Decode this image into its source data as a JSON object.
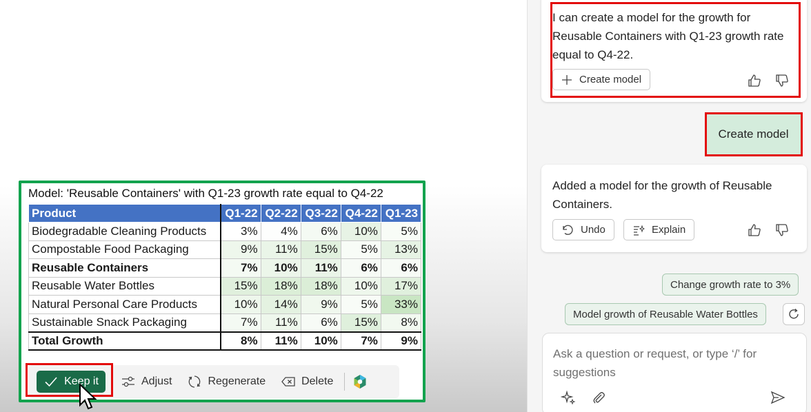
{
  "model": {
    "title": "Model: 'Reusable Containers' with Q1-23 growth rate equal to Q4-22",
    "columns": [
      "Product",
      "Q1-22",
      "Q2-22",
      "Q3-22",
      "Q4-22",
      "Q1-23"
    ],
    "rows": [
      {
        "product": "Biodegradable Cleaning Products",
        "values": [
          "3%",
          "4%",
          "6%",
          "10%",
          "5%"
        ]
      },
      {
        "product": "Compostable Food Packaging",
        "values": [
          "9%",
          "11%",
          "15%",
          "5%",
          "13%"
        ]
      },
      {
        "product": "Reusable Containers",
        "values": [
          "7%",
          "10%",
          "11%",
          "6%",
          "6%"
        ]
      },
      {
        "product": "Reusable Water Bottles",
        "values": [
          "15%",
          "18%",
          "18%",
          "10%",
          "17%"
        ]
      },
      {
        "product": "Natural Personal Care Products",
        "values": [
          "10%",
          "14%",
          "9%",
          "5%",
          "33%"
        ]
      },
      {
        "product": "Sustainable Snack Packaging",
        "values": [
          "7%",
          "11%",
          "6%",
          "15%",
          "8%"
        ]
      }
    ],
    "total": {
      "product": "Total Growth",
      "values": [
        "8%",
        "11%",
        "10%",
        "7%",
        "9%"
      ]
    },
    "cell_colors": [
      [
        "#ffffff",
        "#fdfefd",
        "#f4faf3",
        "#e7f3e5",
        "#f8fcf7"
      ],
      [
        "#eef7ec",
        "#eaf5e8",
        "#e0f0dd",
        "#f8fcf7",
        "#e6f3e4"
      ],
      [
        "#f4faf3",
        "#ecf6ea",
        "#eaf5e8",
        "#f7fbf6",
        "#f7fbf6"
      ],
      [
        "#e0f0dd",
        "#dbeed7",
        "#dbeed7",
        "#eef7ec",
        "#e0f0dd"
      ],
      [
        "#eef7ec",
        "#e4f2e1",
        "#f0f8ee",
        "#f8fcf7",
        "#c9e6c3"
      ],
      [
        "#f4faf3",
        "#eef7ec",
        "#f7fbf6",
        "#dff0dc",
        "#f2f9f0"
      ],
      [
        "#ffffff",
        "#ffffff",
        "#ffffff",
        "#ffffff",
        "#ffffff"
      ]
    ]
  },
  "toolbar": {
    "keep": "Keep it",
    "adjust": "Adjust",
    "regenerate": "Regenerate",
    "delete": "Delete"
  },
  "chat": {
    "message1": "I can create a model for the growth for Reusable Containers with Q1-23 growth rate equal to Q4-22.",
    "create_model_btn": "Create model",
    "user_message": "Create model",
    "message2": "Added a model for the growth of Reusable Containers.",
    "undo": "Undo",
    "explain": "Explain",
    "suggestions": [
      "Change growth rate to 3%",
      "Model growth of Reusable Water Bottles"
    ],
    "input_placeholder": "Ask a question or request, or type ‘/’ for suggestions"
  },
  "colors": {
    "accent_green": "#1a6b48",
    "frame_green": "#13a34e",
    "header_blue": "#4472c4",
    "highlight_red": "#e30b0b"
  },
  "icons": [
    "check-icon",
    "adjust-icon",
    "regenerate-icon",
    "delete-icon",
    "copilot-icon",
    "plus-icon",
    "undo-icon",
    "explain-icon",
    "thumbs-up-icon",
    "thumbs-down-icon",
    "refresh-icon",
    "sparkle-icon",
    "attach-icon",
    "send-icon",
    "cursor-icon"
  ]
}
